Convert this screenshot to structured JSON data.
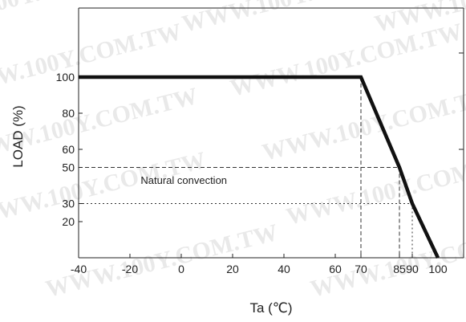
{
  "chart_data": {
    "type": "line",
    "title": "",
    "xlabel": "Ta (℃)",
    "ylabel": "LOAD (%)",
    "xlim": [
      -40,
      110
    ],
    "ylim": [
      0,
      124
    ],
    "grid": false,
    "x_ticks": [
      -40,
      -20,
      0,
      20,
      40,
      60,
      70,
      85,
      90,
      100
    ],
    "x_tick_labels": [
      "-40",
      "-20",
      "0",
      "20",
      "40",
      "60",
      "70",
      "85",
      "90",
      "100"
    ],
    "y_ticks": [
      20,
      30,
      50,
      60,
      80,
      100
    ],
    "y_tick_labels": [
      "20",
      "30",
      "50",
      "60",
      "80",
      "100"
    ],
    "series": [
      {
        "x": [
          -40,
          70,
          85,
          90,
          100
        ],
        "y": [
          100,
          100,
          50,
          30,
          0
        ]
      }
    ],
    "annotations": [
      {
        "text": "Natural convection",
        "x": 1,
        "y": 41
      }
    ],
    "reference_lines": [
      {
        "x": 70,
        "y": 100,
        "style": "dashed"
      },
      {
        "x": 85,
        "y": 50,
        "style": "dashed"
      },
      {
        "x": 90,
        "y": 30,
        "style": "dotted"
      }
    ],
    "colors": {
      "curve": "#111111",
      "axis": "#222222",
      "guide": "#333333"
    }
  },
  "watermark": "WWW.100Y.COM.TW"
}
